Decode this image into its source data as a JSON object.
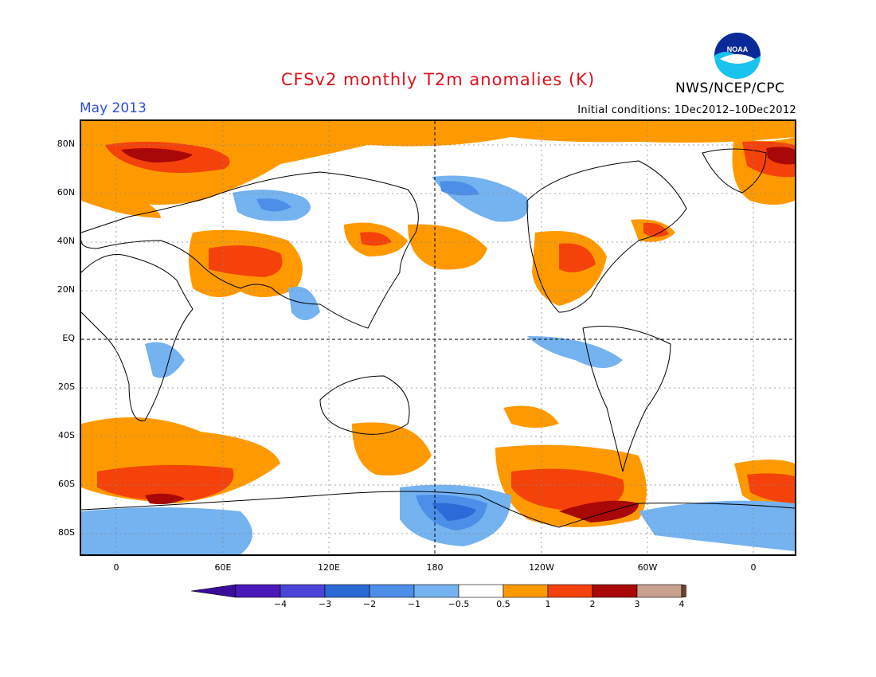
{
  "title": "CFSv2 monthly T2m anomalies (K)",
  "period": "May 2013",
  "initial_conditions": "Initial conditions: 1Dec2012–10Dec2012",
  "agency": "NWS/NCEP/CPC",
  "logo": {
    "icon": "noaa-logo-icon",
    "text": "NOAA"
  },
  "map": {
    "lat_labels": [
      "80N",
      "60N",
      "40N",
      "20N",
      "EQ",
      "20S",
      "40S",
      "60S",
      "80S"
    ],
    "lon_labels": [
      "0",
      "60E",
      "120E",
      "180",
      "120W",
      "60W",
      "0"
    ]
  },
  "colorbar": {
    "labels": [
      "−4",
      "−3",
      "−2",
      "−1",
      "−0.5",
      "0.5",
      "1",
      "2",
      "3",
      "4"
    ],
    "colors": [
      "#4a18b8",
      "#4a44d8",
      "#2c6ad8",
      "#4c8ee8",
      "#74b2f0",
      "#ffffff",
      "#fe9a00",
      "#f5410a",
      "#a80808",
      "#c8a08e"
    ],
    "below_color": "#3a0c9a",
    "above_color": "#6a4434"
  },
  "colors": {
    "warm1": "#fe9a00",
    "warm2": "#f5410a",
    "warm3": "#a80808",
    "cool1": "#74b2f0",
    "cool2": "#4c8ee8",
    "cool3": "#2c6ad8"
  }
}
